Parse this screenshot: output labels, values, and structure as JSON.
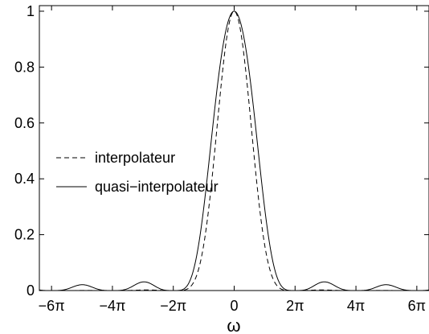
{
  "chart_data": {
    "type": "line",
    "title": "",
    "xlabel": "ω",
    "ylabel": "",
    "xlim": [
      -20.106,
      20.106
    ],
    "ylim": [
      0,
      1.02
    ],
    "x_unit": "π",
    "x_ticks": [
      -6,
      -4,
      -2,
      0,
      2,
      4,
      6
    ],
    "x_tick_labels": [
      "−6π",
      "−4π",
      "−2π",
      "0",
      "2π",
      "4π",
      "6π"
    ],
    "y_ticks": [
      0,
      0.2,
      0.4,
      0.6,
      0.8,
      1
    ],
    "y_tick_labels": [
      "0",
      "0.2",
      "0.4",
      "0.6",
      "0.8",
      "1"
    ],
    "grid": false,
    "legend_position": "center-left",
    "series": [
      {
        "name": "interpolateur",
        "style": "dashed",
        "color": "#000000",
        "description_values": {
          "peak": {
            "x": 0,
            "y": 1.0
          },
          "sidelobe_peaks": [
            {
              "x": -15.4,
              "y": 0.018
            },
            {
              "x": -8.8,
              "y": 0.05
            },
            {
              "x": 8.8,
              "y": 0.05
            },
            {
              "x": 15.4,
              "y": 0.018
            }
          ],
          "zeros": [
            -18.85,
            -12.566,
            -6.283,
            6.283,
            12.566,
            18.85
          ]
        }
      },
      {
        "name": "quasi−interpolateur",
        "style": "solid",
        "color": "#000000",
        "description_values": {
          "peak": {
            "x": 0,
            "y": 1.0
          },
          "sidelobe_peaks": [
            {
              "x": -15.4,
              "y": 0.024
            },
            {
              "x": -8.8,
              "y": 0.07
            },
            {
              "x": 8.8,
              "y": 0.07
            },
            {
              "x": 15.4,
              "y": 0.024
            }
          ],
          "zeros": [
            -18.85,
            -12.566,
            -6.283,
            6.283,
            12.566,
            18.85
          ]
        }
      }
    ]
  }
}
